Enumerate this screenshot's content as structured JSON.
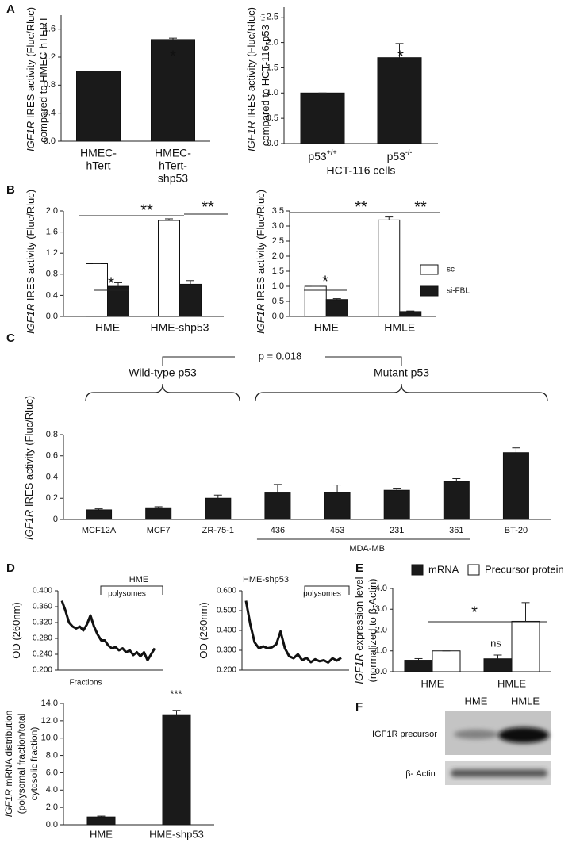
{
  "chart_data": [
    {
      "type": "bar",
      "panel": "A",
      "ylabel": [
        [
          {
            "i": "IGF1R"
          },
          " IRES activity (Fluc/Rluc)"
        ],
        [
          "compared to HMEC-hTERT"
        ]
      ],
      "categories": [
        [
          "HMEC-",
          "hTert"
        ],
        [
          "HMEC-",
          "hTert-",
          "shp53"
        ]
      ],
      "values": [
        1.0,
        1.45
      ],
      "errors": [
        0,
        0.02
      ],
      "color": "#1a1a1a",
      "ylim": [
        0,
        1.8
      ],
      "yticks": [
        {
          "value": 0,
          "label": "0.0"
        },
        0.4,
        0.8,
        1.2,
        1.6
      ],
      "annotations": [
        "*"
      ]
    },
    {
      "type": "bar",
      "ylabel": [
        [
          {
            "i": "IGF1R"
          },
          " IRES activity (Fluc/Rluc)"
        ],
        [
          "compared to HCT-116-p53 ",
          {
            "s": "+/+"
          }
        ]
      ],
      "categories": [
        {
          "text": "p53",
          "sup": "+/+"
        },
        {
          "text": "p53",
          "sup": "-/-"
        }
      ],
      "xlabel": "HCT-116 cells",
      "values": [
        1.0,
        1.7
      ],
      "errors": [
        0,
        0.28
      ],
      "color": "#1a1a1a",
      "ylim": [
        0,
        2.7
      ],
      "yticks": [
        {
          "value": 0,
          "label": "0.0"
        },
        0.5,
        {
          "value": 1,
          "label": "1.0"
        },
        1.5,
        {
          "value": 2,
          "label": "2.0"
        },
        2.5
      ],
      "annotations": [
        "*"
      ]
    },
    {
      "type": "grouped_bar",
      "panel": "B",
      "ylabel": [
        [
          {
            "i": "IGF1R"
          },
          " IRES activity (Fluc/Rluc)"
        ]
      ],
      "categories": [
        "HME",
        "HME-shp53"
      ],
      "series": [
        {
          "name": "sc",
          "color": "#ffffff",
          "values": [
            1.0,
            1.82
          ],
          "errors": [
            0,
            0.03
          ]
        },
        {
          "name": "si-FBL",
          "color": "#1a1a1a",
          "values": [
            0.57,
            0.61
          ],
          "errors": [
            0.07,
            0.07
          ]
        }
      ],
      "ylim": [
        0,
        2.0
      ],
      "yticks": [
        {
          "value": 0,
          "label": "0.0"
        },
        0.4,
        0.8,
        1.2,
        1.6,
        {
          "value": 2,
          "label": "2.0"
        }
      ],
      "annotations": [
        "*",
        "**",
        "**"
      ]
    },
    {
      "type": "grouped_bar",
      "ylabel": [
        [
          {
            "i": "IGF1R"
          },
          " IRES activity (Fluc/Rluc)"
        ]
      ],
      "categories": [
        "HME",
        "HMLE"
      ],
      "series": [
        {
          "name": "sc",
          "color": "#ffffff",
          "values": [
            1.0,
            3.2
          ],
          "errors": [
            0,
            0.1
          ]
        },
        {
          "name": "si-FBL",
          "color": "#1a1a1a",
          "values": [
            0.56,
            0.16
          ],
          "errors": [
            0.03,
            0.02
          ]
        }
      ],
      "ylim": [
        0,
        3.5
      ],
      "yticks": [
        {
          "value": 0,
          "label": "0.0"
        },
        0.5,
        {
          "value": 1,
          "label": "1.0"
        },
        1.5,
        {
          "value": 2,
          "label": "2.0"
        },
        2.5,
        {
          "value": 3,
          "label": "3.0"
        },
        3.5
      ],
      "legend": "right",
      "annotations": [
        "*",
        "**",
        "**"
      ]
    },
    {
      "type": "bar",
      "panel": "C",
      "ylabel": [
        [
          {
            "i": "IGF1R"
          },
          " IRES activity (Fluc/Rluc)"
        ]
      ],
      "categories": [
        "MCF12A",
        "MCF7",
        "ZR-75-1",
        "436",
        "453",
        "231",
        "361",
        "BT-20"
      ],
      "values": [
        0.09,
        0.11,
        0.2,
        0.25,
        0.255,
        0.275,
        0.355,
        0.63
      ],
      "errors": [
        0.01,
        0.01,
        0.03,
        0.08,
        0.07,
        0.02,
        0.03,
        0.045
      ],
      "color": "#1a1a1a",
      "ylim": [
        0,
        0.8
      ],
      "yticks": [
        0,
        0.2,
        0.4,
        0.6,
        0.8
      ],
      "groups": [
        "Wild-type p53",
        "Mutant p53"
      ],
      "p_value": "p = 0.018",
      "subgroup": "MDA-MB"
    },
    {
      "type": "line",
      "panel": "D",
      "title": "HME",
      "xlabel": "Fractions",
      "ylabel": [
        [
          "OD (260nm)"
        ]
      ],
      "values": [
        0.375,
        0.35,
        0.32,
        0.31,
        0.305,
        0.31,
        0.3,
        0.315,
        0.338,
        0.31,
        0.29,
        0.275,
        0.275,
        0.262,
        0.255,
        0.258,
        0.25,
        0.255,
        0.245,
        0.25,
        0.238,
        0.245,
        0.235,
        0.245,
        0.225,
        0.24,
        0.255
      ],
      "color": "#111111",
      "ylim": [
        0.2,
        0.4
      ],
      "yticks": [
        {
          "value": 0.2,
          "label": "0.200"
        },
        {
          "value": 0.24,
          "label": "0.240"
        },
        {
          "value": 0.28,
          "label": "0.280"
        },
        {
          "value": 0.32,
          "label": "0.320"
        },
        {
          "value": 0.36,
          "label": "0.360"
        },
        {
          "value": 0.4,
          "label": "0.400"
        }
      ],
      "region_label": "polysomes"
    },
    {
      "type": "line",
      "title": "HME-shp53",
      "ylabel": [
        [
          "OD (260nm)"
        ]
      ],
      "values": [
        0.55,
        0.43,
        0.34,
        0.31,
        0.32,
        0.31,
        0.315,
        0.33,
        0.395,
        0.31,
        0.27,
        0.26,
        0.28,
        0.25,
        0.262,
        0.24,
        0.255,
        0.245,
        0.25,
        0.238,
        0.26,
        0.248,
        0.262
      ],
      "color": "#111111",
      "ylim": [
        0.2,
        0.6
      ],
      "yticks": [
        {
          "value": 0.2,
          "label": "0.200"
        },
        {
          "value": 0.3,
          "label": "0.300"
        },
        {
          "value": 0.4,
          "label": "0.400"
        },
        {
          "value": 0.5,
          "label": "0.500"
        },
        {
          "value": 0.6,
          "label": "0.600"
        }
      ],
      "region_label": "polysomes"
    },
    {
      "type": "bar",
      "ylabel": [
        [
          {
            "i": "IGF1R"
          },
          " mRNA distribution"
        ],
        [
          "(polysomal fraction/total"
        ],
        [
          "cytosolic fraction)"
        ]
      ],
      "categories": [
        "HME",
        "HME-shp53"
      ],
      "values": [
        0.9,
        12.7
      ],
      "errors": [
        0.1,
        0.5
      ],
      "color": "#1a1a1a",
      "ylim": [
        0,
        14
      ],
      "yticks": [
        {
          "value": 0,
          "label": "0.0"
        },
        {
          "value": 2,
          "label": "2.0"
        },
        {
          "value": 4,
          "label": "4.0"
        },
        {
          "value": 6,
          "label": "6.0"
        },
        {
          "value": 8,
          "label": "8.0"
        },
        {
          "value": 10,
          "label": "10.0"
        },
        {
          "value": 12,
          "label": "12.0"
        },
        {
          "value": 14,
          "label": "14.0"
        }
      ],
      "annotations": [
        "***"
      ]
    },
    {
      "type": "grouped_bar",
      "panel": "E",
      "ylabel": [
        [
          {
            "i": "IGF1R"
          },
          " expression level"
        ],
        [
          "(normalized to β-Actin)"
        ]
      ],
      "categories": [
        "HME",
        "HMLE"
      ],
      "series": [
        {
          "name": "mRNA",
          "color": "#1a1a1a",
          "values": [
            0.55,
            0.62
          ],
          "errors": [
            0.08,
            0.18
          ]
        },
        {
          "name": "Precursor protein",
          "color": "#ffffff",
          "values": [
            1.0,
            2.42
          ],
          "errors": [
            0,
            0.9
          ]
        }
      ],
      "ylim": [
        0,
        4
      ],
      "yticks": [
        {
          "value": 0,
          "label": "0.0"
        },
        {
          "value": 1,
          "label": "1.0"
        },
        {
          "value": 2,
          "label": "2.0"
        },
        {
          "value": 3,
          "label": "3.0"
        },
        {
          "value": 4,
          "label": "4.0"
        }
      ],
      "legend": "top",
      "annotations": [
        "ns",
        "*"
      ]
    }
  ],
  "blot": {
    "panel": "F",
    "lanes": [
      "HME",
      "HMLE"
    ],
    "rows": [
      "IGF1R precursor",
      "β- Actin"
    ]
  }
}
